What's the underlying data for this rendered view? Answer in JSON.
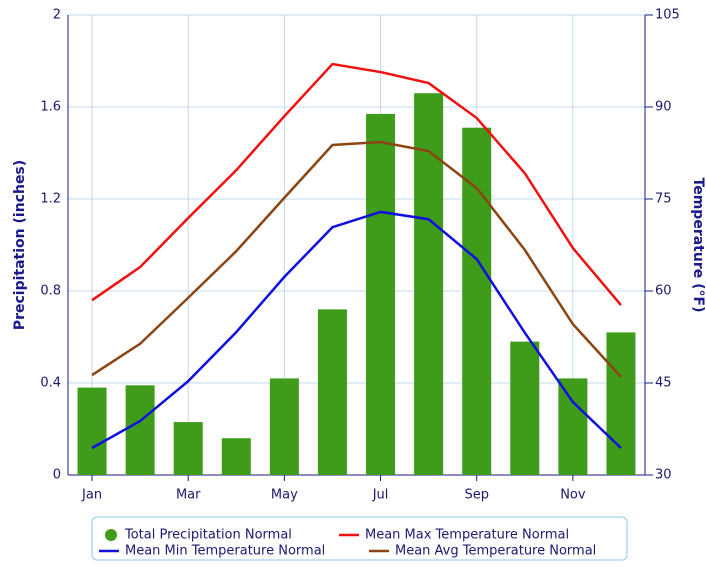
{
  "chart_data": {
    "type": "bar",
    "categories": [
      "Jan",
      null,
      "Mar",
      null,
      "May",
      null,
      "Jul",
      null,
      "Sep",
      null,
      "Nov",
      null
    ],
    "ylabel": "Precipitation (inches)",
    "y2label": "Temperature (°F)",
    "ylim": [
      0,
      2
    ],
    "yticks": [
      0,
      0.4,
      0.8,
      1.2,
      1.6,
      2
    ],
    "y2lim": [
      30,
      105
    ],
    "y2ticks": [
      30,
      45,
      60,
      75,
      90,
      105
    ],
    "grid": true,
    "series": [
      {
        "name": "Total Precipitation Normal",
        "type": "bar",
        "color": "#3f9c1a",
        "values": [
          0.38,
          0.39,
          0.23,
          0.16,
          0.42,
          0.72,
          1.57,
          1.66,
          1.51,
          0.58,
          0.42,
          0.62
        ]
      },
      {
        "name": "Mean Max Temperature Normal",
        "type": "line",
        "axis": "y2",
        "color": "#f01010",
        "values": [
          58.5,
          63.9,
          71.9,
          79.7,
          88.5,
          97,
          95.7,
          93.9,
          88.2,
          79.2,
          67,
          57.7
        ]
      },
      {
        "name": "Mean Min Temperature Normal",
        "type": "line",
        "axis": "y2",
        "color": "#1010e0",
        "values": [
          34.4,
          38.8,
          45.3,
          53.3,
          62.3,
          70.4,
          72.9,
          71.7,
          65.2,
          53.2,
          41.9,
          34.4
        ]
      },
      {
        "name": "Mean Avg Temperature Normal",
        "type": "line",
        "axis": "y2",
        "color": "#8b4513",
        "values": [
          46.3,
          51.4,
          58.9,
          66.5,
          75.2,
          83.8,
          84.3,
          82.8,
          76.8,
          66.7,
          54.6,
          46
        ]
      }
    ]
  }
}
